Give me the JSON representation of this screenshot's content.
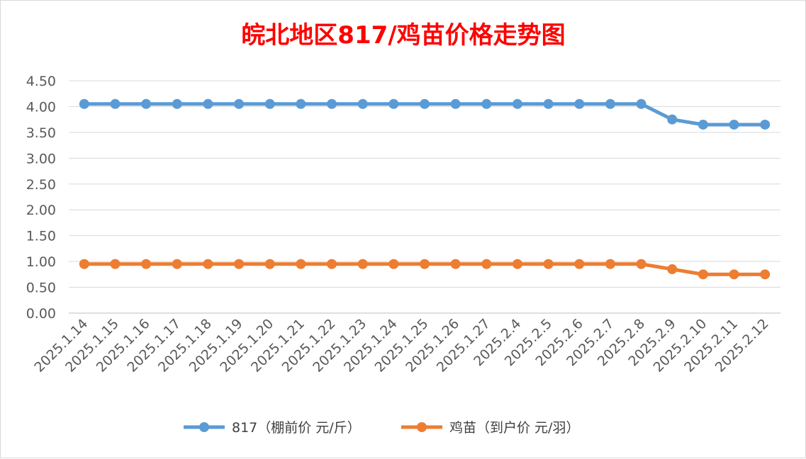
{
  "chart_data": {
    "type": "line",
    "title": "皖北地区817/鸡苗价格走势图",
    "xlabel": "",
    "ylabel": "",
    "categories": [
      "2025.1.14",
      "2025.1.15",
      "2025.1.16",
      "2025.1.17",
      "2025.1.18",
      "2025.1.19",
      "2025.1.20",
      "2025.1.21",
      "2025.1.22",
      "2025.1.23",
      "2025.1.24",
      "2025.1.25",
      "2025.1.26",
      "2025.1.27",
      "2025.2.4",
      "2025.2.5",
      "2025.2.6",
      "2025.2.7",
      "2025.2.8",
      "2025.2.9",
      "2025.2.10",
      "2025.2.11",
      "2025.2.12"
    ],
    "y_ticks": [
      "0.00",
      "0.50",
      "1.00",
      "1.50",
      "2.00",
      "2.50",
      "3.00",
      "3.50",
      "4.00",
      "4.50"
    ],
    "ylim": [
      0,
      4.5
    ],
    "grid": true,
    "legend_position": "bottom",
    "series": [
      {
        "name": "817（棚前价 元/斤）",
        "color": "#5b9bd5",
        "values": [
          4.05,
          4.05,
          4.05,
          4.05,
          4.05,
          4.05,
          4.05,
          4.05,
          4.05,
          4.05,
          4.05,
          4.05,
          4.05,
          4.05,
          4.05,
          4.05,
          4.05,
          4.05,
          4.05,
          3.75,
          3.65,
          3.65,
          3.65
        ]
      },
      {
        "name": "鸡苗（到户价 元/羽）",
        "color": "#ed7d31",
        "values": [
          0.95,
          0.95,
          0.95,
          0.95,
          0.95,
          0.95,
          0.95,
          0.95,
          0.95,
          0.95,
          0.95,
          0.95,
          0.95,
          0.95,
          0.95,
          0.95,
          0.95,
          0.95,
          0.95,
          0.85,
          0.75,
          0.75,
          0.75
        ]
      }
    ]
  }
}
